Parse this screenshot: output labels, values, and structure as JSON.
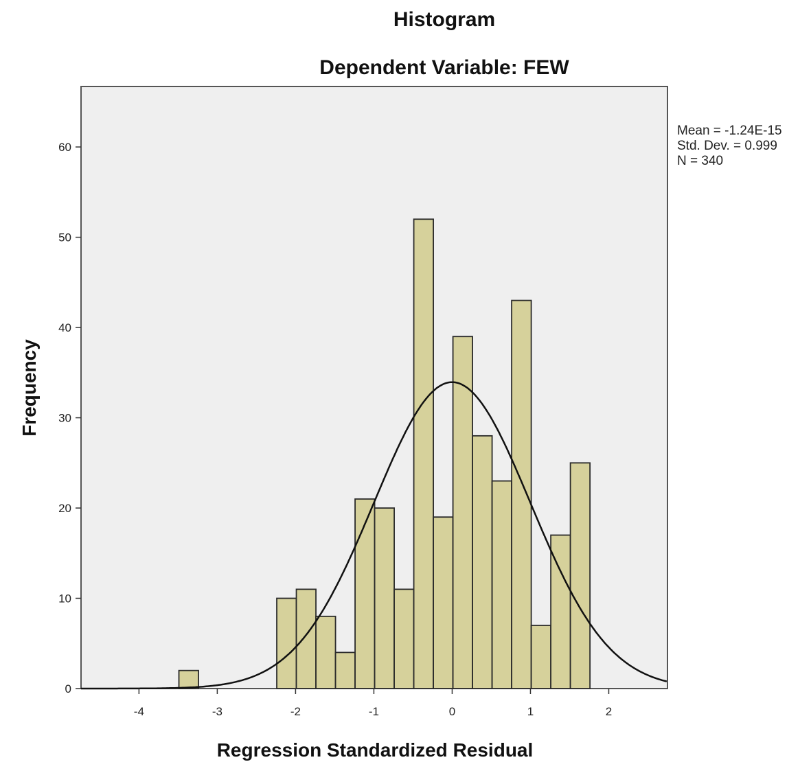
{
  "chart_data": {
    "type": "bar",
    "title": "Histogram",
    "subtitle": "Dependent Variable: FEW",
    "xlabel": "Regression Standardized Residual",
    "ylabel": "Frequency",
    "xlim": [
      -4.74,
      2.75
    ],
    "ylim": [
      0,
      66.7
    ],
    "xticks": [
      -4,
      -3,
      -2,
      -1,
      0,
      1,
      2
    ],
    "yticks": [
      0,
      10,
      20,
      30,
      40,
      50,
      60
    ],
    "bin_width": 0.25,
    "bins": [
      {
        "start": -3.49,
        "count": 2
      },
      {
        "start": -2.24,
        "count": 10
      },
      {
        "start": -1.99,
        "count": 11
      },
      {
        "start": -1.74,
        "count": 8
      },
      {
        "start": -1.49,
        "count": 4
      },
      {
        "start": -1.24,
        "count": 21
      },
      {
        "start": -0.99,
        "count": 20
      },
      {
        "start": -0.74,
        "count": 11
      },
      {
        "start": -0.49,
        "count": 52
      },
      {
        "start": -0.24,
        "count": 19
      },
      {
        "start": 0.01,
        "count": 39
      },
      {
        "start": 0.26,
        "count": 28
      },
      {
        "start": 0.51,
        "count": 23
      },
      {
        "start": 0.76,
        "count": 43
      },
      {
        "start": 1.01,
        "count": 7
      },
      {
        "start": 1.26,
        "count": 17
      },
      {
        "start": 1.51,
        "count": 25
      }
    ],
    "normal_curve": {
      "mean": 0,
      "sd": 0.999,
      "n": 340
    },
    "stats": [
      "Mean = -1.24E-15",
      "Std. Dev. = 0.999",
      "N = 340"
    ],
    "grid": false,
    "colors": {
      "bar_fill": "#d6d19b",
      "bar_stroke": "#2a2a2a",
      "plot_bg": "#efefef",
      "curve": "#111111"
    }
  }
}
